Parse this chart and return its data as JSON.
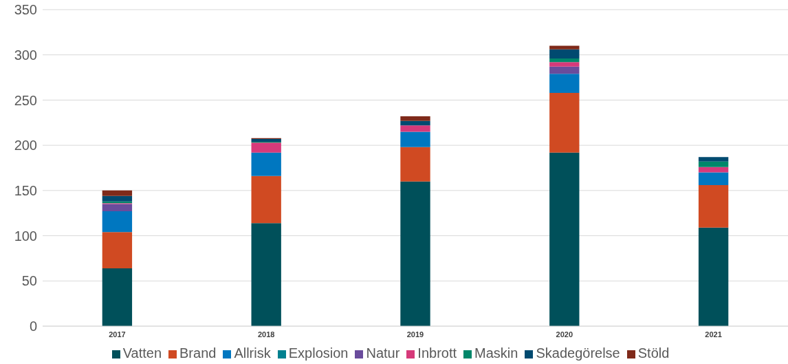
{
  "chart_data": {
    "type": "bar",
    "stacked": true,
    "categories": [
      "2017",
      "2018",
      "2019",
      "2020",
      "2021"
    ],
    "series": [
      {
        "name": "Vatten",
        "color": "#00505a",
        "values": [
          64,
          114,
          160,
          192,
          109
        ]
      },
      {
        "name": "Brand",
        "color": "#d04a22",
        "values": [
          40,
          52,
          38,
          66,
          47
        ]
      },
      {
        "name": "Allrisk",
        "color": "#0077c0",
        "values": [
          23,
          26,
          17,
          21,
          14
        ]
      },
      {
        "name": "Explosion",
        "color": "#00808f",
        "values": [
          0,
          0,
          0,
          0,
          0
        ]
      },
      {
        "name": "Natur",
        "color": "#6a4c9c",
        "values": [
          8,
          0,
          0,
          8,
          0
        ]
      },
      {
        "name": "Inbrott",
        "color": "#d63a7a",
        "values": [
          1,
          11,
          7,
          5,
          6
        ]
      },
      {
        "name": "Maskin",
        "color": "#00876a",
        "values": [
          2,
          1,
          0,
          4,
          6
        ]
      },
      {
        "name": "Skadegörelse",
        "color": "#004a70",
        "values": [
          6,
          3,
          5,
          10,
          5
        ]
      },
      {
        "name": "Stöld",
        "color": "#7f2a1a",
        "values": [
          6,
          1,
          5,
          4,
          0
        ]
      }
    ],
    "ylim": [
      0,
      350
    ],
    "yticks": [
      0,
      50,
      100,
      150,
      200,
      250,
      300,
      350
    ],
    "grid": "y",
    "legend": "bottom"
  }
}
